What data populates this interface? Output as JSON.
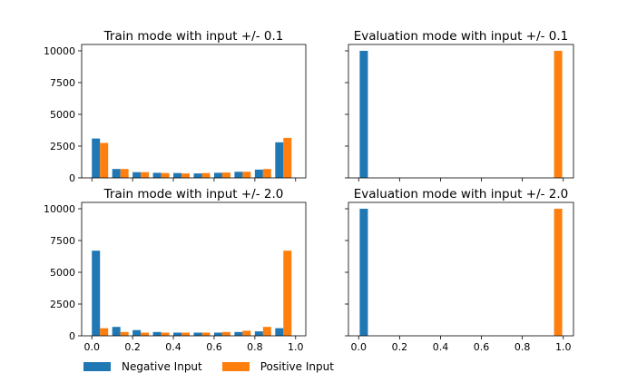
{
  "chart_data": [
    {
      "type": "bar",
      "title": "Train mode with input +/- 0.1",
      "x_bins": [
        0.05,
        0.15,
        0.25,
        0.35,
        0.45,
        0.55,
        0.65,
        0.75,
        0.85,
        0.95
      ],
      "series": [
        {
          "name": "Negative Input",
          "color": "#1f77b4",
          "values": [
            3100,
            700,
            450,
            400,
            380,
            350,
            400,
            480,
            650,
            2800
          ]
        },
        {
          "name": "Positive Input",
          "color": "#ff7f0e",
          "values": [
            2750,
            700,
            450,
            380,
            350,
            380,
            420,
            480,
            700,
            3150
          ]
        }
      ],
      "xlim": [
        -0.05,
        1.05
      ],
      "ylim": [
        0,
        10500
      ],
      "yticks": [
        "0",
        "2500",
        "5000",
        "7500",
        "10000"
      ],
      "xticks": []
    },
    {
      "type": "bar",
      "title": "Evaluation mode with input +/- 0.1",
      "x_bins": [
        0.025,
        0.975
      ],
      "series": [
        {
          "name": "Negative Input",
          "color": "#1f77b4",
          "values": [
            10000,
            0
          ]
        },
        {
          "name": "Positive Input",
          "color": "#ff7f0e",
          "values": [
            0,
            10000
          ]
        }
      ],
      "xlim": [
        -0.05,
        1.05
      ],
      "ylim": [
        0,
        10500
      ],
      "yticks": [],
      "xticks": []
    },
    {
      "type": "bar",
      "title": "Train mode with input +/- 2.0",
      "x_bins": [
        0.05,
        0.15,
        0.25,
        0.35,
        0.45,
        0.55,
        0.65,
        0.75,
        0.85,
        0.95
      ],
      "series": [
        {
          "name": "Negative Input",
          "color": "#1f77b4",
          "values": [
            6700,
            700,
            450,
            300,
            250,
            250,
            250,
            300,
            350,
            600
          ]
        },
        {
          "name": "Positive Input",
          "color": "#ff7f0e",
          "values": [
            600,
            300,
            250,
            250,
            250,
            250,
            300,
            400,
            700,
            6700
          ]
        }
      ],
      "xlim": [
        -0.05,
        1.05
      ],
      "ylim": [
        0,
        10500
      ],
      "yticks": [
        "0",
        "2500",
        "5000",
        "7500",
        "10000"
      ],
      "xticks": [
        "0.0",
        "0.2",
        "0.4",
        "0.6",
        "0.8",
        "1.0"
      ]
    },
    {
      "type": "bar",
      "title": "Evaluation mode with input +/- 2.0",
      "x_bins": [
        0.025,
        0.975
      ],
      "series": [
        {
          "name": "Negative Input",
          "color": "#1f77b4",
          "values": [
            10000,
            0
          ]
        },
        {
          "name": "Positive Input",
          "color": "#ff7f0e",
          "values": [
            0,
            10000
          ]
        }
      ],
      "xlim": [
        -0.05,
        1.05
      ],
      "ylim": [
        0,
        10500
      ],
      "yticks": [],
      "xticks": [
        "0.0",
        "0.2",
        "0.4",
        "0.6",
        "0.8",
        "1.0"
      ]
    }
  ],
  "legend": {
    "placement": "bottom-left",
    "items": [
      {
        "label": "Negative Input",
        "color": "#1f77b4"
      },
      {
        "label": "Positive Input",
        "color": "#ff7f0e"
      }
    ]
  }
}
